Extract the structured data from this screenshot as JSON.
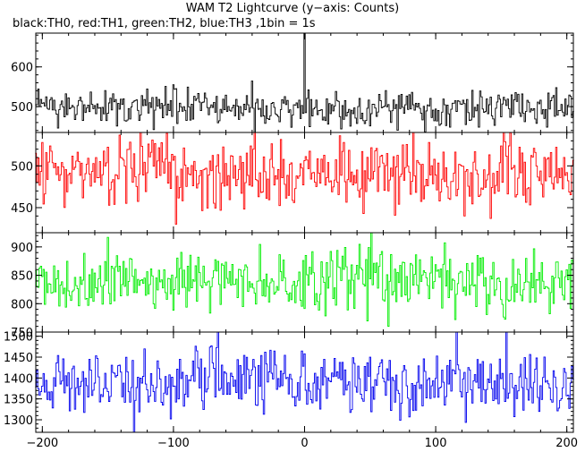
{
  "title": "WAM T2 Lightcurve (y−axis: Counts)",
  "subtitle": "black:TH0, red:TH1, green:TH2, blue:TH3 ,1bin = 1s",
  "chart_data": {
    "type": "line",
    "title": "WAM T2 Lightcurve (y−axis: Counts)",
    "subtitle": "black:TH0, red:TH1, green:TH2, blue:TH3 ,1bin = 1s",
    "xlabel": "",
    "ylabel": "Counts",
    "xlim": [
      -205,
      205
    ],
    "x_ticks": [
      -200,
      -100,
      0,
      100,
      200
    ],
    "x_tick_labels": [
      "−200",
      "−100",
      "0",
      "100",
      "200"
    ],
    "x_step": 1,
    "grid": false,
    "layout": "four stacked panels sharing the x axis",
    "series": [
      {
        "name": "TH0",
        "color": "#000000",
        "ylim": [
          435,
          685
        ],
        "y_ticks": [
          500,
          600
        ],
        "mean": 497,
        "noise": 22,
        "feature": "narrow spike at x = 0 reaching ~685 counts",
        "spike": {
          "x": 0,
          "value": 685
        }
      },
      {
        "name": "TH1",
        "color": "#ff0000",
        "ylim": [
          420,
          540
        ],
        "y_ticks": [
          450,
          500
        ],
        "mean": 490,
        "noise": 20
      },
      {
        "name": "TH2",
        "color": "#00ee00",
        "ylim": [
          750,
          925
        ],
        "y_ticks": [
          750,
          800,
          850,
          900
        ],
        "mean": 840,
        "noise": 28
      },
      {
        "name": "TH3",
        "color": "#0000ee",
        "ylim": [
          1270,
          1510
        ],
        "y_ticks": [
          1300,
          1350,
          1400,
          1450,
          1500
        ],
        "mean": 1390,
        "noise": 38
      }
    ]
  }
}
